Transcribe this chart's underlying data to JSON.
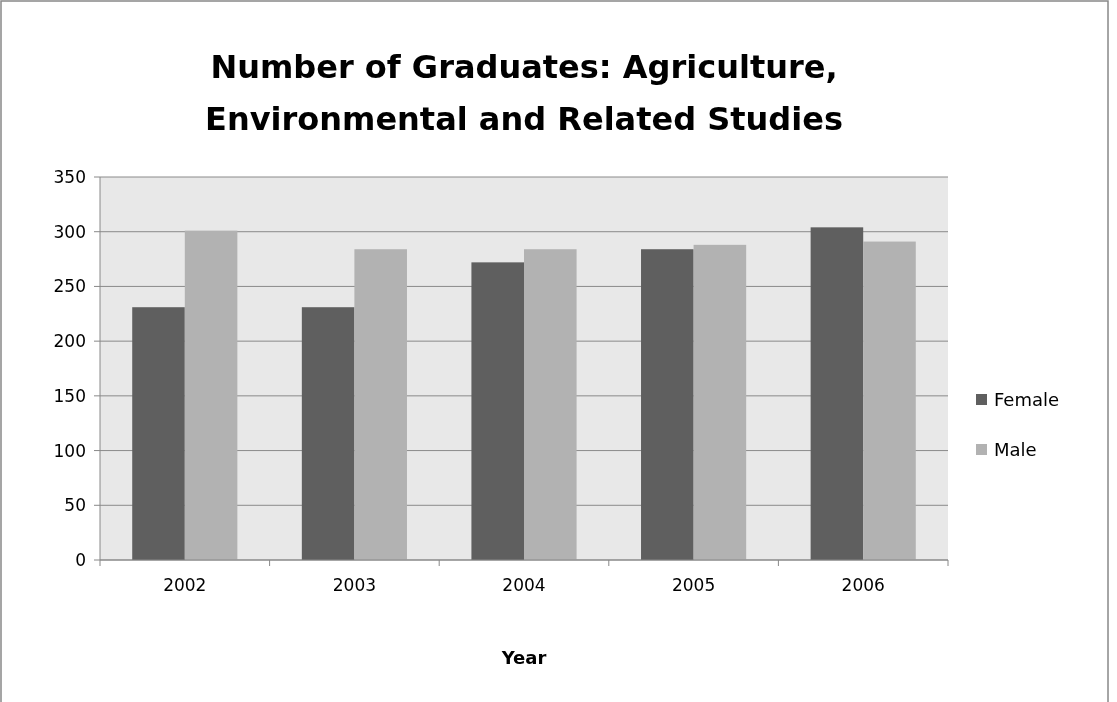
{
  "chart_data": {
    "type": "bar",
    "title": "Number of Graduates: Agriculture, Environmental and Related Studies",
    "xlabel": "Year",
    "categories": [
      "2002",
      "2003",
      "2004",
      "2005",
      "2006"
    ],
    "series": [
      {
        "name": "Female",
        "color": "#5f5f5f",
        "values": [
          231,
          231,
          272,
          284,
          304
        ]
      },
      {
        "name": "Male",
        "color": "#b2b2b2",
        "values": [
          301,
          284,
          284,
          288,
          291
        ]
      }
    ],
    "ylim": [
      0,
      350
    ],
    "yticks": [
      0,
      50,
      100,
      150,
      200,
      250,
      300,
      350
    ],
    "grid": "y",
    "legend": "right"
  }
}
